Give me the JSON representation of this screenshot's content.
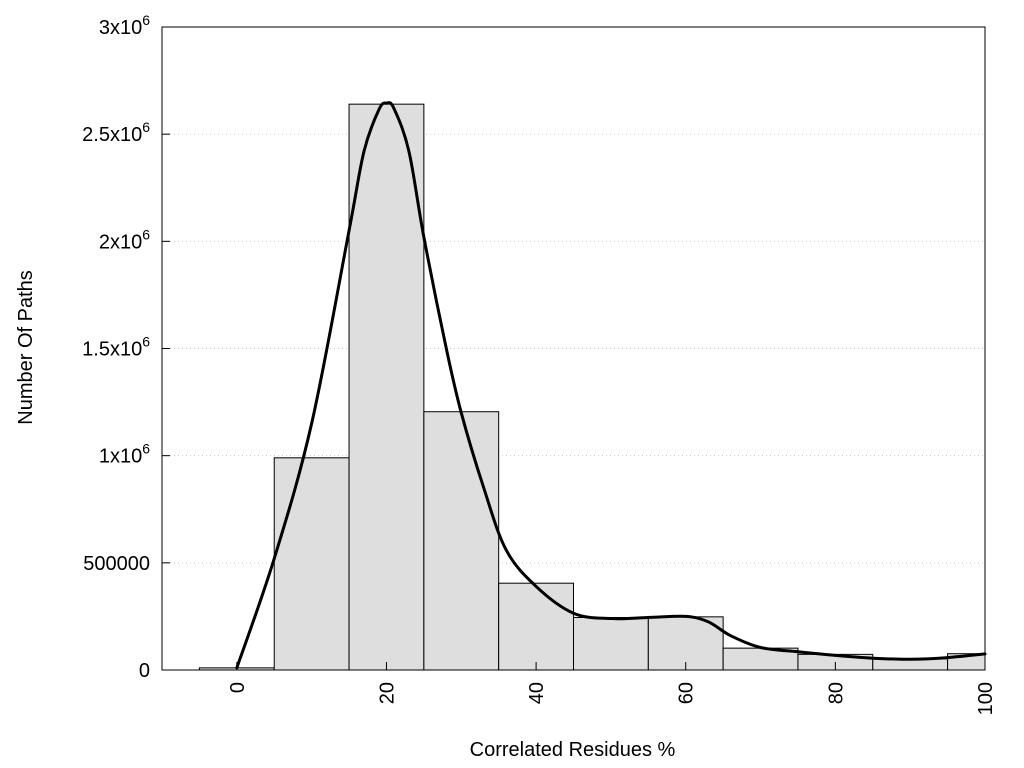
{
  "chart_data": {
    "type": "bar",
    "xlabel": "Correlated Residues %",
    "ylabel": "Number Of Paths",
    "xlim": [
      -10,
      100
    ],
    "ylim": [
      0,
      3000000
    ],
    "grid": true,
    "bins": [
      {
        "x": 0,
        "value": 10000
      },
      {
        "x": 10,
        "value": 990000
      },
      {
        "x": 20,
        "value": 2640000
      },
      {
        "x": 30,
        "value": 1205000
      },
      {
        "x": 40,
        "value": 405000
      },
      {
        "x": 50,
        "value": 245000
      },
      {
        "x": 60,
        "value": 248000
      },
      {
        "x": 70,
        "value": 102000
      },
      {
        "x": 80,
        "value": 73000
      },
      {
        "x": 90,
        "value": 52000
      },
      {
        "x": 100,
        "value": 76000
      }
    ],
    "bin_width": 10,
    "curve": {
      "x": [
        0,
        5,
        10,
        15,
        17,
        19,
        20,
        21,
        23,
        25,
        28,
        30,
        33,
        36,
        40,
        45,
        50,
        55,
        60,
        63,
        66,
        70,
        75,
        80,
        85,
        90,
        95,
        100
      ],
      "y": [
        10000,
        520000,
        1150000,
        2050000,
        2420000,
        2615000,
        2645000,
        2620000,
        2420000,
        2020000,
        1500000,
        1200000,
        850000,
        560000,
        390000,
        265000,
        240000,
        245000,
        250000,
        225000,
        160000,
        105000,
        85000,
        68000,
        55000,
        50000,
        58000,
        75000
      ]
    },
    "x_ticks": [
      {
        "value": 0,
        "label": "0"
      },
      {
        "value": 20,
        "label": "20"
      },
      {
        "value": 40,
        "label": "40"
      },
      {
        "value": 60,
        "label": "60"
      },
      {
        "value": 80,
        "label": "80"
      },
      {
        "value": 100,
        "label": "100"
      }
    ],
    "y_ticks": [
      {
        "value": 0,
        "label": "0",
        "exp": ""
      },
      {
        "value": 500000,
        "label": "500000",
        "exp": ""
      },
      {
        "value": 1000000,
        "label": "1x10",
        "exp": "6"
      },
      {
        "value": 1500000,
        "label": "1.5x10",
        "exp": "6"
      },
      {
        "value": 2000000,
        "label": "2x10",
        "exp": "6"
      },
      {
        "value": 2500000,
        "label": "2.5x10",
        "exp": "6"
      },
      {
        "value": 3000000,
        "label": "3x10",
        "exp": "6"
      }
    ]
  }
}
